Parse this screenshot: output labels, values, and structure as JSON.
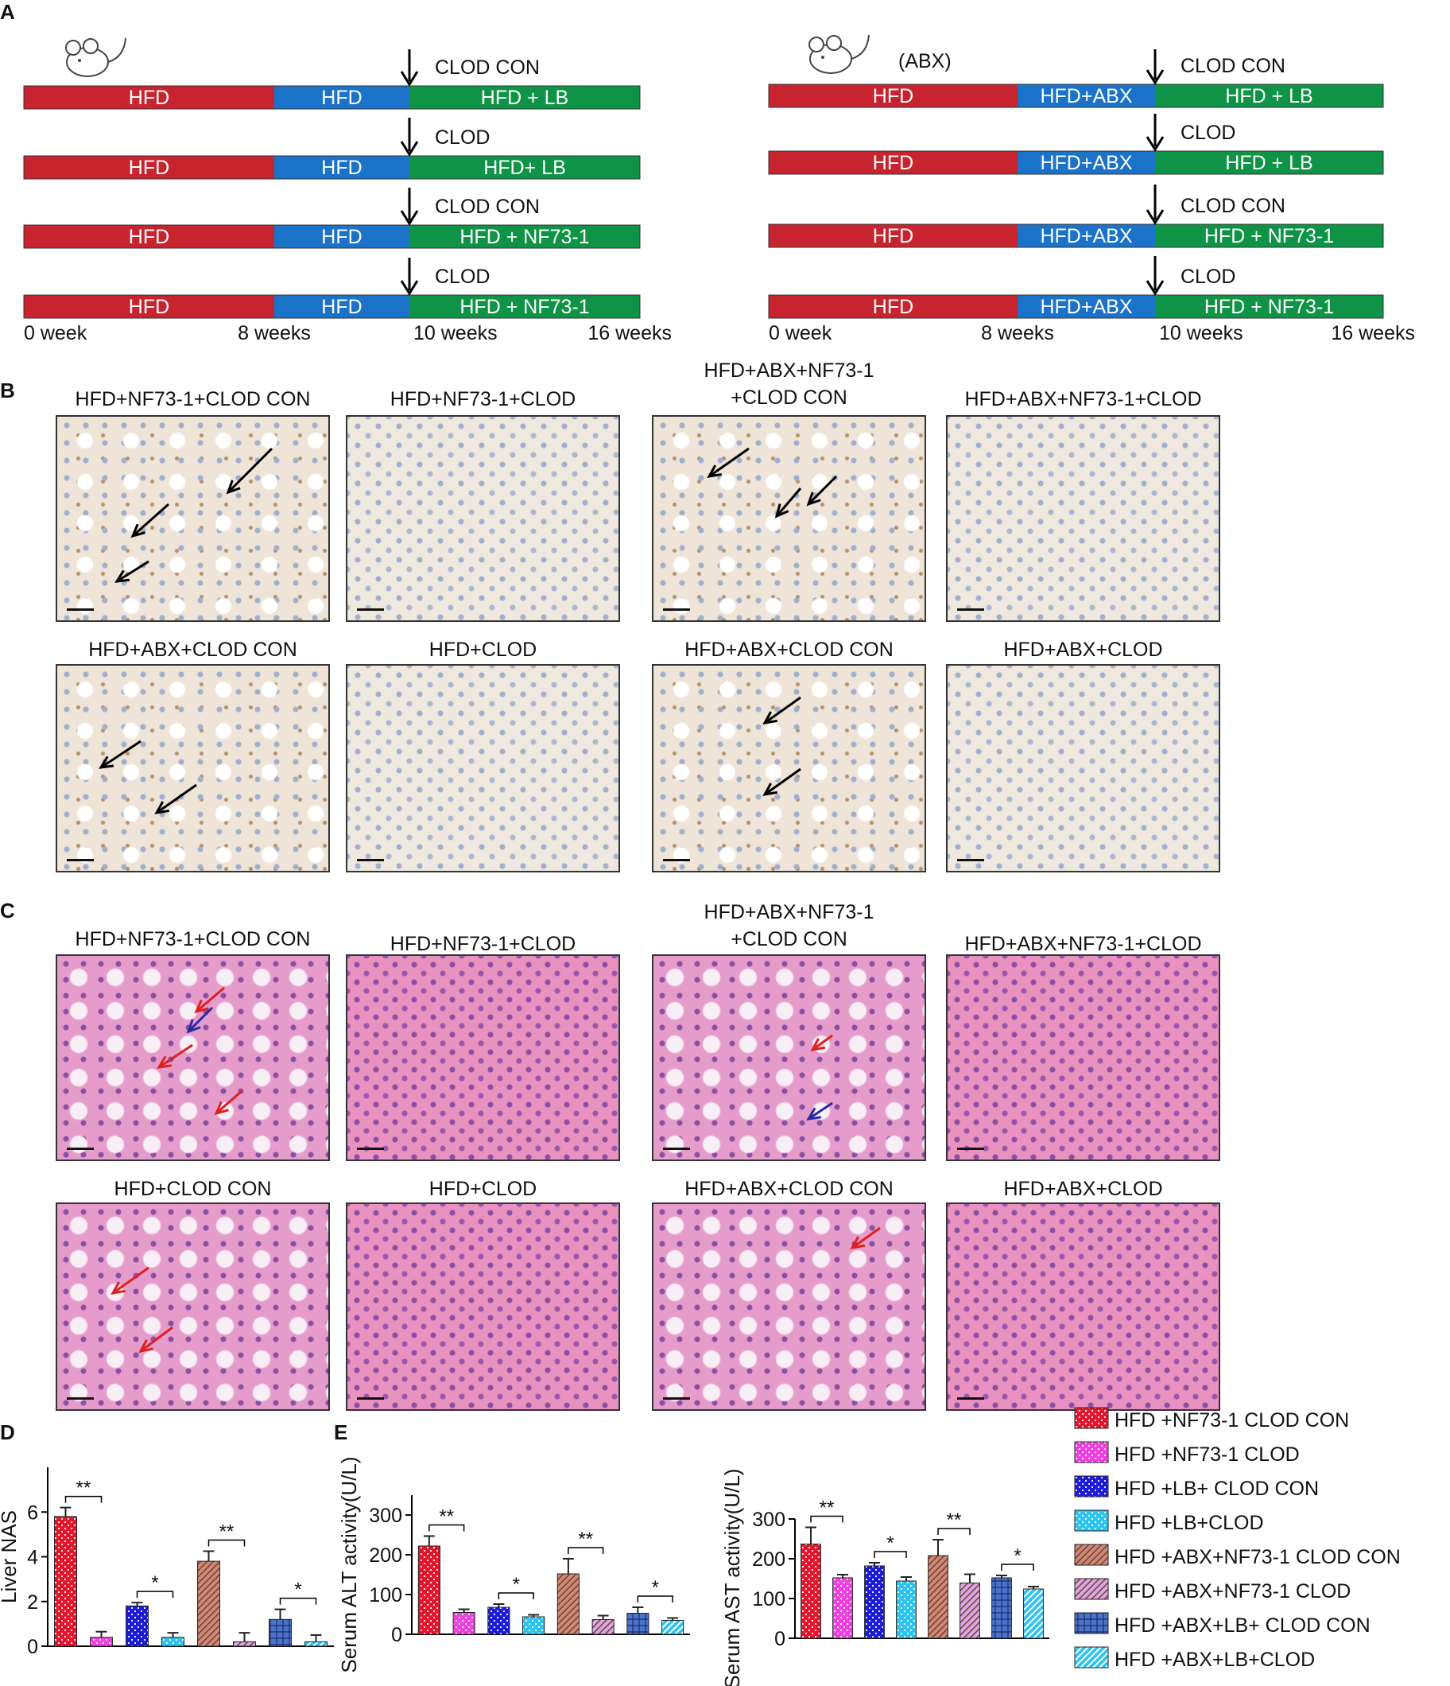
{
  "panels": {
    "a": "A",
    "b": "B",
    "c": "C",
    "d": "D",
    "e": "E"
  },
  "timeline": {
    "left": {
      "rows": [
        {
          "event": "CLOD CON",
          "red": "HFD",
          "blue": "HFD",
          "green": "HFD + LB"
        },
        {
          "event": "CLOD",
          "red": "HFD",
          "blue": "HFD",
          "green": "HFD+ LB"
        },
        {
          "event": "CLOD CON",
          "red": "HFD",
          "blue": "HFD",
          "green": "HFD + NF73-1"
        },
        {
          "event": "CLOD",
          "red": "HFD",
          "blue": "HFD",
          "green": "HFD + NF73-1"
        }
      ],
      "weeks": [
        "0 week",
        "8 weeks",
        "10 weeks",
        "16 weeks"
      ]
    },
    "right": {
      "tag": "(ABX)",
      "rows": [
        {
          "event": "CLOD CON",
          "red": "HFD",
          "blue": "HFD+ABX",
          "green": "HFD + LB"
        },
        {
          "event": "CLOD",
          "red": "HFD",
          "blue": "HFD+ABX",
          "green": "HFD + LB"
        },
        {
          "event": "CLOD CON",
          "red": "HFD",
          "blue": "HFD+ABX",
          "green": "HFD + NF73-1"
        },
        {
          "event": "CLOD",
          "red": "HFD",
          "blue": "HFD+ABX",
          "green": "HFD + NF73-1"
        }
      ],
      "weeks": [
        "0 week",
        "8 weeks",
        "10 weeks",
        "16 weeks"
      ]
    },
    "colors": {
      "red": "#c8242f",
      "blue": "#1a73c8",
      "green": "#0f9447"
    }
  },
  "panel_b": {
    "row1": [
      "HFD+NF73-1+CLOD CON",
      "HFD+NF73-1+CLOD",
      "HFD+ABX+NF73-1\n+CLOD CON",
      "HFD+ABX+NF73-1+CLOD"
    ],
    "row2": [
      "HFD+ABX+CLOD CON",
      "HFD+CLOD",
      "HFD+ABX+CLOD CON",
      "HFD+ABX+CLOD"
    ]
  },
  "panel_c": {
    "row1": [
      "HFD+NF73-1+CLOD CON",
      "HFD+NF73-1+CLOD",
      "HFD+ABX+NF73-1\n+CLOD CON",
      "HFD+ABX+NF73-1+CLOD"
    ],
    "row2": [
      "HFD+CLOD CON",
      "HFD+CLOD",
      "HFD+ABX+CLOD CON",
      "HFD+ABX+CLOD"
    ]
  },
  "chart_data": [
    {
      "type": "bar",
      "ylabel": "Liver NAS",
      "ylim": [
        0,
        8
      ],
      "yticks": [
        0,
        2,
        4,
        6
      ],
      "values": [
        5.8,
        0.4,
        1.8,
        0.4,
        3.8,
        0.2,
        1.2,
        0.2
      ],
      "errors": [
        0.4,
        0.25,
        0.15,
        0.2,
        0.45,
        0.4,
        0.45,
        0.3
      ],
      "significance": [
        "**",
        "*",
        "**",
        "*"
      ]
    },
    {
      "type": "bar",
      "ylabel": "Serum ALT activity(U/L)",
      "ylim": [
        0,
        350
      ],
      "yticks": [
        0,
        100,
        200,
        300
      ],
      "values": [
        222,
        55,
        68,
        44,
        152,
        37,
        53,
        35
      ],
      "errors": [
        25,
        8,
        8,
        5,
        38,
        10,
        15,
        6
      ],
      "significance": [
        "**",
        "*",
        "**",
        "*"
      ]
    },
    {
      "type": "bar",
      "ylabel": "Serum AST activity(U/L)",
      "ylim": [
        0,
        300
      ],
      "yticks": [
        0,
        100,
        200,
        300
      ],
      "values": [
        237,
        152,
        182,
        144,
        208,
        139,
        152,
        124
      ],
      "errors": [
        42,
        8,
        8,
        10,
        40,
        22,
        6,
        6
      ],
      "significance": [
        "**",
        "*",
        "**",
        "*"
      ]
    }
  ],
  "legend": [
    {
      "name": "HFD +NF73-1 CLOD CON",
      "color": "#e3152d",
      "pattern": "dots"
    },
    {
      "name": "HFD +NF73-1 CLOD",
      "color": "#ef3fe0",
      "pattern": "dots"
    },
    {
      "name": "HFD +LB+ CLOD CON",
      "color": "#1b1bd8",
      "pattern": "dots"
    },
    {
      "name": "HFD +LB+CLOD",
      "color": "#2ec4f0",
      "pattern": "dots"
    },
    {
      "name": "HFD +ABX+NF73-1 CLOD CON",
      "color": "#c98b78",
      "pattern": "hatch"
    },
    {
      "name": "HFD +ABX+NF73-1 CLOD",
      "color": "#d6a8e6",
      "pattern": "hatch"
    },
    {
      "name": "HFD +ABX+LB+ CLOD CON",
      "color": "#4b74c8",
      "pattern": "grid"
    },
    {
      "name": "HFD +ABX+LB+CLOD",
      "color": "#2ec4f0",
      "pattern": "hatchwhite"
    }
  ]
}
